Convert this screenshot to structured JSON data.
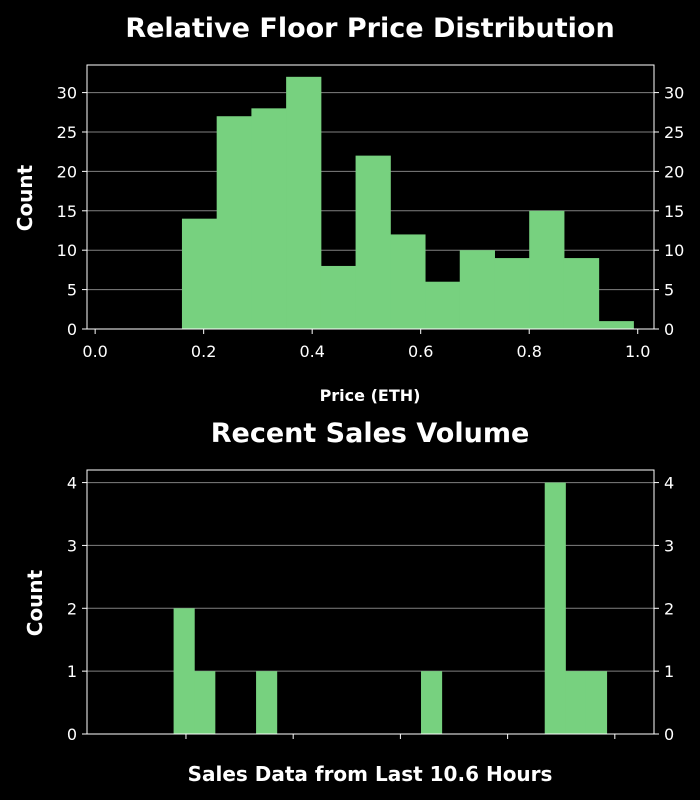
{
  "colors": {
    "background": "#000000",
    "bar": "#77d17f",
    "grid": "#808080",
    "axes": "#ffffff",
    "text": "#ffffff"
  },
  "chart_data": [
    {
      "type": "bar",
      "title": "Relative Floor Price Distribution",
      "xlabel": "Price (ETH)",
      "ylabel": "Count",
      "xlim": [
        -0.015,
        1.03
      ],
      "ylim": [
        0,
        33.5
      ],
      "xticks": [
        0.0,
        0.2,
        0.4,
        0.6,
        0.8,
        1.0
      ],
      "xtick_labels": [
        "0.0",
        "0.2",
        "0.4",
        "0.6",
        "0.8",
        "1.0"
      ],
      "yticks": [
        0,
        5,
        10,
        15,
        20,
        25,
        30
      ],
      "ytick_labels": [
        "0",
        "5",
        "10",
        "15",
        "20",
        "25",
        "30"
      ],
      "grid": true,
      "bin_edges": [
        0.16,
        0.224,
        0.288,
        0.352,
        0.416,
        0.48,
        0.544,
        0.608,
        0.672,
        0.736,
        0.8,
        0.864,
        0.928,
        0.992
      ],
      "values": [
        14,
        27,
        28,
        32,
        8,
        22,
        12,
        6,
        10,
        9,
        15,
        9,
        1
      ]
    },
    {
      "type": "bar",
      "title": "Recent Sales Volume",
      "xlabel": "Sales Data from Last 10.6 Hours",
      "ylabel": "Count",
      "xlim": [
        0,
        27.5
      ],
      "ylim": [
        0,
        4.2
      ],
      "xticks": [
        4.8,
        10,
        15.2,
        20.4,
        25.6
      ],
      "xtick_labels": [
        "",
        "",
        "",
        "",
        ""
      ],
      "yticks": [
        0,
        1,
        2,
        3,
        4
      ],
      "ytick_labels": [
        "0",
        "1",
        "2",
        "3",
        "4"
      ],
      "grid": true,
      "bin_edges": [
        4.2,
        5.2,
        6.2,
        7.2,
        8.2,
        9.2,
        10.2,
        11.2,
        12.2,
        13.2,
        14.2,
        15.2,
        16.2,
        17.2,
        18.2,
        19.2,
        20.2,
        21.2,
        22.2,
        23.2,
        24.2,
        25.2
      ],
      "values": [
        2,
        1,
        0,
        0,
        1,
        0,
        0,
        0,
        0,
        0,
        0,
        0,
        1,
        0,
        0,
        0,
        0,
        0,
        4,
        1,
        1
      ]
    }
  ]
}
